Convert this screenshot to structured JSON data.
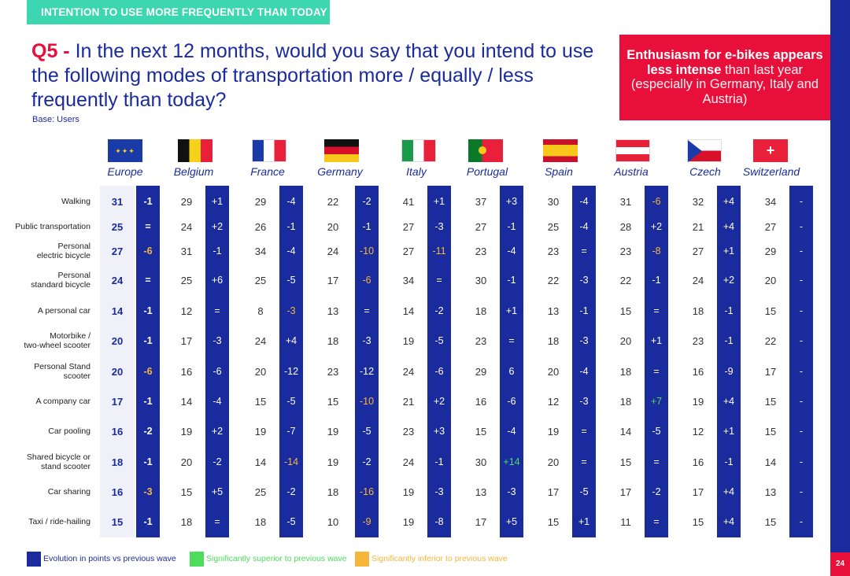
{
  "header": {
    "label": "INTENTION TO USE MORE FREQUENTLY THAN TODAY %"
  },
  "question": {
    "number": "Q5 -",
    "text": "In the next 12 months, would you say that you intend to use the following modes of transportation more / equally / less frequently than today?",
    "base": "Base: Users"
  },
  "callout": {
    "bold": "Enthusiasm for e-bikes appears less intense",
    "thin": "than last year (especially in Germany, Italy and Austria)"
  },
  "countries": [
    "Europe",
    "Belgium",
    "France",
    "Germany",
    "Italy",
    "Portugal",
    "Spain",
    "Austria",
    "Czech",
    "Switzerland"
  ],
  "rows": [
    {
      "label": "Walking",
      "values": [
        31,
        29,
        29,
        22,
        41,
        37,
        30,
        31,
        32,
        34
      ],
      "diffs": [
        "-1",
        "+1",
        "-4",
        "-2",
        "+1",
        "+3",
        "-4",
        "-6",
        "+4",
        "-"
      ],
      "flags": [
        "",
        "",
        "",
        "",
        "",
        "",
        "",
        "down",
        "",
        ""
      ]
    },
    {
      "label": "Public transportation",
      "values": [
        25,
        24,
        26,
        20,
        27,
        27,
        25,
        28,
        21,
        27
      ],
      "diffs": [
        "=",
        "+2",
        "-1",
        "-1",
        "-3",
        "-1",
        "-4",
        "+2",
        "+4",
        "-"
      ],
      "flags": [
        "",
        "",
        "",
        "",
        "",
        "",
        "",
        "",
        "",
        ""
      ]
    },
    {
      "label": "Personal electric bicycle",
      "values": [
        27,
        31,
        34,
        24,
        27,
        23,
        23,
        23,
        27,
        29
      ],
      "diffs": [
        "-6",
        "-1",
        "-4",
        "-10",
        "-11",
        "-4",
        "=",
        "-8",
        "+1",
        "-"
      ],
      "flags": [
        "down",
        "",
        "",
        "down",
        "down",
        "",
        "",
        "down",
        "",
        ""
      ]
    },
    {
      "label": "Personal standard bicycle",
      "values": [
        24,
        25,
        25,
        17,
        34,
        30,
        22,
        22,
        24,
        20
      ],
      "diffs": [
        "=",
        "+6",
        "-5",
        "-6",
        "=",
        "-1",
        "-3",
        "-1",
        "+2",
        "-"
      ],
      "flags": [
        "",
        "",
        "",
        "down",
        "",
        "",
        "",
        "",
        "",
        ""
      ]
    },
    {
      "label": "A personal car",
      "values": [
        14,
        12,
        8,
        13,
        14,
        18,
        13,
        15,
        18,
        15
      ],
      "diffs": [
        "-1",
        "=",
        "-3",
        "=",
        "-2",
        "+1",
        "-1",
        "=",
        "-1",
        "-"
      ],
      "flags": [
        "",
        "",
        "down",
        "",
        "",
        "",
        "",
        "",
        "",
        ""
      ]
    },
    {
      "label": "Motorbike / two-wheel scooter",
      "values": [
        20,
        17,
        24,
        18,
        19,
        23,
        18,
        20,
        23,
        22
      ],
      "diffs": [
        "-1",
        "-3",
        "+4",
        "-3",
        "-5",
        "=",
        "-3",
        "+1",
        "-1",
        "-"
      ],
      "flags": [
        "",
        "",
        "",
        "",
        "",
        "",
        "",
        "",
        "",
        ""
      ]
    },
    {
      "label": "Personal Stand scooter",
      "values": [
        20,
        16,
        20,
        23,
        24,
        29,
        20,
        18,
        16,
        17
      ],
      "diffs": [
        "-6",
        "-6",
        "-12",
        "-12",
        "-6",
        "6",
        "-4",
        "=",
        "-9",
        "-"
      ],
      "flags": [
        "down",
        "",
        "",
        "",
        "",
        "",
        "",
        "",
        "",
        ""
      ]
    },
    {
      "label": "A company car",
      "values": [
        17,
        14,
        15,
        15,
        21,
        16,
        12,
        18,
        19,
        15
      ],
      "diffs": [
        "-1",
        "-4",
        "-5",
        "-10",
        "+2",
        "-6",
        "-3",
        "+7",
        "+4",
        "-"
      ],
      "flags": [
        "",
        "",
        "",
        "down",
        "",
        "",
        "",
        "up",
        "",
        ""
      ]
    },
    {
      "label": "Car pooling",
      "values": [
        16,
        19,
        19,
        19,
        23,
        15,
        19,
        14,
        12,
        15
      ],
      "diffs": [
        "-2",
        "+2",
        "-7",
        "-5",
        "+3",
        "-4",
        "=",
        "-5",
        "+1",
        "-"
      ],
      "flags": [
        "",
        "",
        "",
        "",
        "",
        "",
        "",
        "",
        "",
        ""
      ]
    },
    {
      "label": "Shared bicycle or stand scooter",
      "values": [
        18,
        20,
        14,
        19,
        24,
        30,
        20,
        15,
        16,
        14
      ],
      "diffs": [
        "-1",
        "-2",
        "-14",
        "-2",
        "-1",
        "+14",
        "=",
        "=",
        "-1",
        "-"
      ],
      "flags": [
        "",
        "",
        "down",
        "",
        "",
        "up",
        "",
        "",
        "",
        ""
      ]
    },
    {
      "label": "Car sharing",
      "values": [
        16,
        15,
        25,
        18,
        19,
        13,
        17,
        17,
        17,
        13
      ],
      "diffs": [
        "-3",
        "+5",
        "-2",
        "-16",
        "-3",
        "-3",
        "-5",
        "-2",
        "+4",
        "-"
      ],
      "flags": [
        "down",
        "",
        "",
        "down",
        "",
        "",
        "",
        "",
        "",
        ""
      ]
    },
    {
      "label": "Taxi / ride-hailing",
      "values": [
        15,
        18,
        18,
        10,
        19,
        17,
        15,
        11,
        15,
        15
      ],
      "diffs": [
        "-1",
        "=",
        "-5",
        "-9",
        "-8",
        "+5",
        "+1",
        "=",
        "+4",
        "-"
      ],
      "flags": [
        "",
        "",
        "",
        "down",
        "",
        "",
        "",
        "",
        "",
        ""
      ]
    }
  ],
  "legend": {
    "evolution": "Evolution in points vs previous wave",
    "superior": "Significantly superior to previous wave",
    "inferior": "Significantly inferior to previous wave"
  },
  "page_number": "24",
  "colors": {
    "navy": "#1a2b9e",
    "red": "#e8103a",
    "teal": "#3cd6b0",
    "green": "#4ddc5c",
    "orange": "#f6b63a"
  }
}
